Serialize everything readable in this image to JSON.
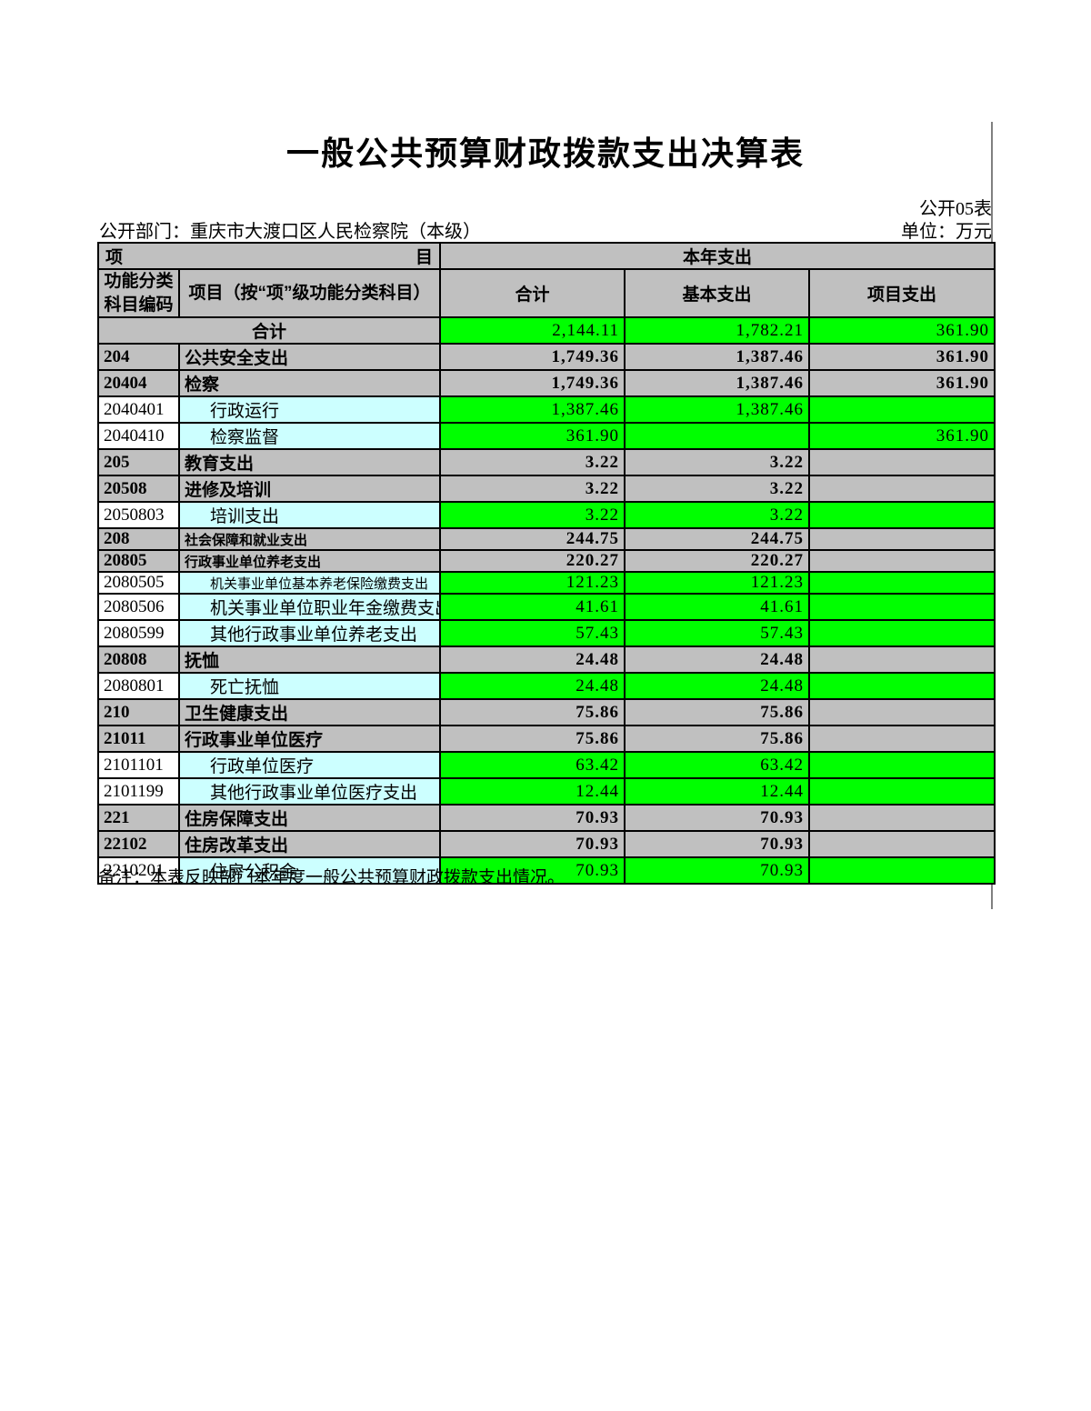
{
  "page": {
    "title": "一般公共预算财政拨款支出决算表",
    "table_code": "公开05表",
    "department_label": "公开部门：重庆市大渡口区人民检察院（本级）",
    "unit_label": "单位：万元",
    "note": "备注：本表反映部门本年度一般公共预算财政拨款支出情况。"
  },
  "colors": {
    "value_green": "#00ff00",
    "summary_gray": "#c0c0c0",
    "detail_cyan": "#ccffff",
    "border": "#000000",
    "pagebreak_line": "#808080"
  },
  "table": {
    "header": {
      "item_left": "项",
      "item_right": "目",
      "year_expense": "本年支出",
      "col_code": "功能分类科目编码",
      "col_project": "项目（按“项”级功能分类科目）",
      "col_total": "合计",
      "col_basic": "基本支出",
      "col_project_exp": "项目支出"
    },
    "total_row": {
      "label": "合计",
      "total": "2,144.11",
      "basic": "1,782.21",
      "project": "361.90"
    },
    "rows": [
      {
        "code": "204",
        "name": "公共安全支出",
        "total": "1,749.36",
        "basic": "1,387.46",
        "project": "361.90",
        "level": "summary",
        "narrow": false
      },
      {
        "code": "20404",
        "name": "检察",
        "total": "1,749.36",
        "basic": "1,387.46",
        "project": "361.90",
        "level": "summary",
        "narrow": false
      },
      {
        "code": "2040401",
        "name": "行政运行",
        "total": "1,387.46",
        "basic": "1,387.46",
        "project": "",
        "level": "detail",
        "narrow": false
      },
      {
        "code": "2040410",
        "name": "检察监督",
        "total": "361.90",
        "basic": "",
        "project": "361.90",
        "level": "detail",
        "narrow": false
      },
      {
        "code": "205",
        "name": "教育支出",
        "total": "3.22",
        "basic": "3.22",
        "project": "",
        "level": "summary",
        "narrow": false
      },
      {
        "code": "20508",
        "name": "进修及培训",
        "total": "3.22",
        "basic": "3.22",
        "project": "",
        "level": "summary",
        "narrow": false
      },
      {
        "code": "2050803",
        "name": "培训支出",
        "total": "3.22",
        "basic": "3.22",
        "project": "",
        "level": "detail",
        "narrow": false
      },
      {
        "code": "208",
        "name": "社会保障和就业支出",
        "total": "244.75",
        "basic": "244.75",
        "project": "",
        "level": "summary",
        "narrow": true
      },
      {
        "code": "20805",
        "name": "行政事业单位养老支出",
        "total": "220.27",
        "basic": "220.27",
        "project": "",
        "level": "summary",
        "narrow": true
      },
      {
        "code": "2080505",
        "name": "机关事业单位基本养老保险缴费支出",
        "total": "121.23",
        "basic": "121.23",
        "project": "",
        "level": "detail",
        "narrow": true
      },
      {
        "code": "2080506",
        "name": "机关事业单位职业年金缴费支出",
        "total": "41.61",
        "basic": "41.61",
        "project": "",
        "level": "detail",
        "narrow": false
      },
      {
        "code": "2080599",
        "name": "其他行政事业单位养老支出",
        "total": "57.43",
        "basic": "57.43",
        "project": "",
        "level": "detail",
        "narrow": false
      },
      {
        "code": "20808",
        "name": "抚恤",
        "total": "24.48",
        "basic": "24.48",
        "project": "",
        "level": "summary",
        "narrow": false
      },
      {
        "code": "2080801",
        "name": "死亡抚恤",
        "total": "24.48",
        "basic": "24.48",
        "project": "",
        "level": "detail",
        "narrow": false
      },
      {
        "code": "210",
        "name": "卫生健康支出",
        "total": "75.86",
        "basic": "75.86",
        "project": "",
        "level": "summary",
        "narrow": false
      },
      {
        "code": "21011",
        "name": "行政事业单位医疗",
        "total": "75.86",
        "basic": "75.86",
        "project": "",
        "level": "summary",
        "narrow": false
      },
      {
        "code": "2101101",
        "name": "行政单位医疗",
        "total": "63.42",
        "basic": "63.42",
        "project": "",
        "level": "detail",
        "narrow": false
      },
      {
        "code": "2101199",
        "name": "其他行政事业单位医疗支出",
        "total": "12.44",
        "basic": "12.44",
        "project": "",
        "level": "detail",
        "narrow": false
      },
      {
        "code": "221",
        "name": "住房保障支出",
        "total": "70.93",
        "basic": "70.93",
        "project": "",
        "level": "summary",
        "narrow": false
      },
      {
        "code": "22102",
        "name": "住房改革支出",
        "total": "70.93",
        "basic": "70.93",
        "project": "",
        "level": "summary",
        "narrow": false
      },
      {
        "code": "2210201",
        "name": "住房公积金",
        "total": "70.93",
        "basic": "70.93",
        "project": "",
        "level": "detail",
        "narrow": false
      }
    ]
  }
}
